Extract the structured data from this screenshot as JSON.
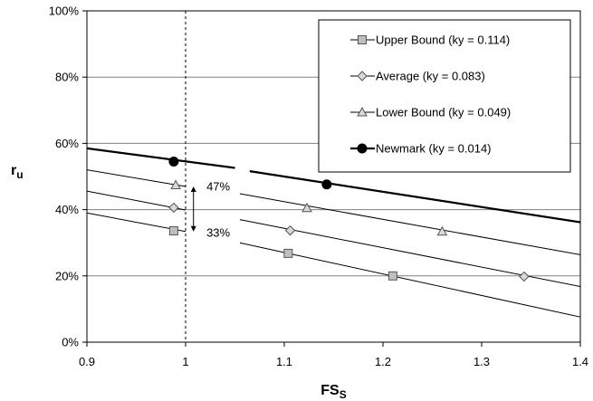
{
  "chart_data": {
    "type": "line",
    "xlabel": "FS",
    "xlabel_sub": "S",
    "ylabel": "r",
    "ylabel_sub": "u",
    "xlim": [
      0.9,
      1.4
    ],
    "ylim": [
      0,
      100
    ],
    "x_ticks": [
      "0.9",
      "1",
      "1.1",
      "1.2",
      "1.3",
      "1.4"
    ],
    "y_ticks": [
      "0%",
      "20%",
      "40%",
      "60%",
      "80%",
      "100%"
    ],
    "grid": "horizontal",
    "legend_position": "top-right",
    "reference_line_x": 1.0,
    "series": [
      {
        "name": "Upper Bound (ky = 0.114)",
        "marker": "square",
        "color": "#000000",
        "marker_fill": "#bfbfbf",
        "line_width": 1,
        "segments": [
          {
            "x": [
              0.9,
              1.0
            ],
            "y": [
              39.0,
              33.4
            ]
          },
          {
            "x": [
              1.055,
              1.4
            ],
            "y": [
              30.0,
              7.6
            ]
          }
        ],
        "points": {
          "x": [
            0.988,
            1.104,
            1.21
          ],
          "y": [
            33.6,
            26.8,
            20.0
          ]
        }
      },
      {
        "name": "Average (ky = 0.083)",
        "marker": "diamond",
        "color": "#000000",
        "marker_fill": "#d9d9d9",
        "line_width": 1,
        "segments": [
          {
            "x": [
              0.9,
              1.0
            ],
            "y": [
              45.6,
              39.9
            ]
          },
          {
            "x": [
              1.055,
              1.4
            ],
            "y": [
              37.0,
              16.8
            ]
          }
        ],
        "points": {
          "x": [
            0.988,
            1.106,
            1.343
          ],
          "y": [
            40.6,
            33.7,
            19.8
          ]
        }
      },
      {
        "name": "Lower Bound (ky = 0.049)",
        "marker": "triangle",
        "color": "#000000",
        "marker_fill": "#d9d9d9",
        "line_width": 1,
        "segments": [
          {
            "x": [
              0.9,
              1.0
            ],
            "y": [
              52.0,
              47.0
            ]
          },
          {
            "x": [
              1.055,
              1.4
            ],
            "y": [
              44.8,
              26.4
            ]
          }
        ],
        "points": {
          "x": [
            0.99,
            1.123,
            1.26
          ],
          "y": [
            47.4,
            40.5,
            33.4
          ]
        }
      },
      {
        "name": "Newmark (ky = 0.014)",
        "marker": "circle",
        "color": "#000000",
        "marker_fill": "#000000",
        "line_width": 2.2,
        "segments": [
          {
            "x": [
              0.9,
              1.05
            ],
            "y": [
              58.5,
              52.6
            ]
          },
          {
            "x": [
              1.065,
              1.4
            ],
            "y": [
              51.6,
              36.2
            ]
          }
        ],
        "points": {
          "x": [
            0.988,
            1.143
          ],
          "y": [
            54.5,
            47.6
          ]
        }
      }
    ],
    "annotations": [
      {
        "text": "47%",
        "x": 1.012,
        "y": 47.0
      },
      {
        "text": "33%",
        "x": 1.012,
        "y": 33.0
      }
    ],
    "range_arrow": {
      "x": 1.008,
      "y_top": 47.0,
      "y_bottom": 33.4
    }
  }
}
